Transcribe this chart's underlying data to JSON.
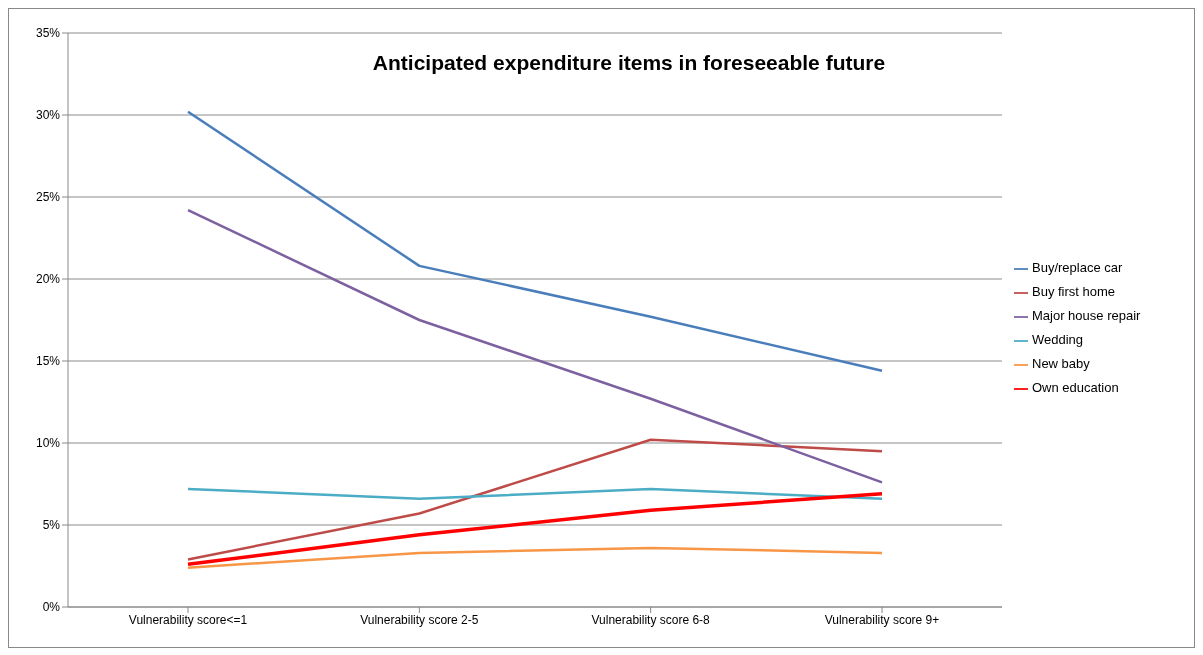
{
  "chart_data": {
    "type": "line",
    "title": "Anticipated expenditure items in foreseeable future",
    "categories": [
      "Vulnerability score<=1",
      "Vulnerability score 2-5",
      "Vulnerability score 6-8",
      "Vulnerability score 9+"
    ],
    "series": [
      {
        "name": "Buy/replace car",
        "color": "#4a7ebb",
        "values": [
          30.2,
          20.8,
          17.7,
          14.4
        ]
      },
      {
        "name": "Buy first home",
        "color": "#be4b48",
        "values": [
          2.9,
          5.7,
          10.2,
          9.5
        ]
      },
      {
        "name": "Major house repair",
        "color": "#7d60a0",
        "values": [
          24.2,
          17.5,
          12.7,
          7.6
        ]
      },
      {
        "name": "Wedding",
        "color": "#4bacc6",
        "values": [
          7.2,
          6.6,
          7.2,
          6.6
        ]
      },
      {
        "name": "New baby",
        "color": "#f79646",
        "values": [
          2.4,
          3.3,
          3.6,
          3.3
        ]
      },
      {
        "name": "Own education",
        "color": "#ff0000",
        "values": [
          2.6,
          4.4,
          5.9,
          6.9
        ]
      }
    ],
    "ylim": [
      0,
      35
    ],
    "yticks": [
      {
        "value": 0,
        "label": "0%"
      },
      {
        "value": 5,
        "label": "5%"
      },
      {
        "value": 10,
        "label": "10%"
      },
      {
        "value": 15,
        "label": "15%"
      },
      {
        "value": 20,
        "label": "20%"
      },
      {
        "value": 25,
        "label": "25%"
      },
      {
        "value": 30,
        "label": "30%"
      },
      {
        "value": 35,
        "label": "35%"
      }
    ],
    "grid": "y",
    "legend": "right",
    "marker": "none",
    "line_style": "solid"
  }
}
